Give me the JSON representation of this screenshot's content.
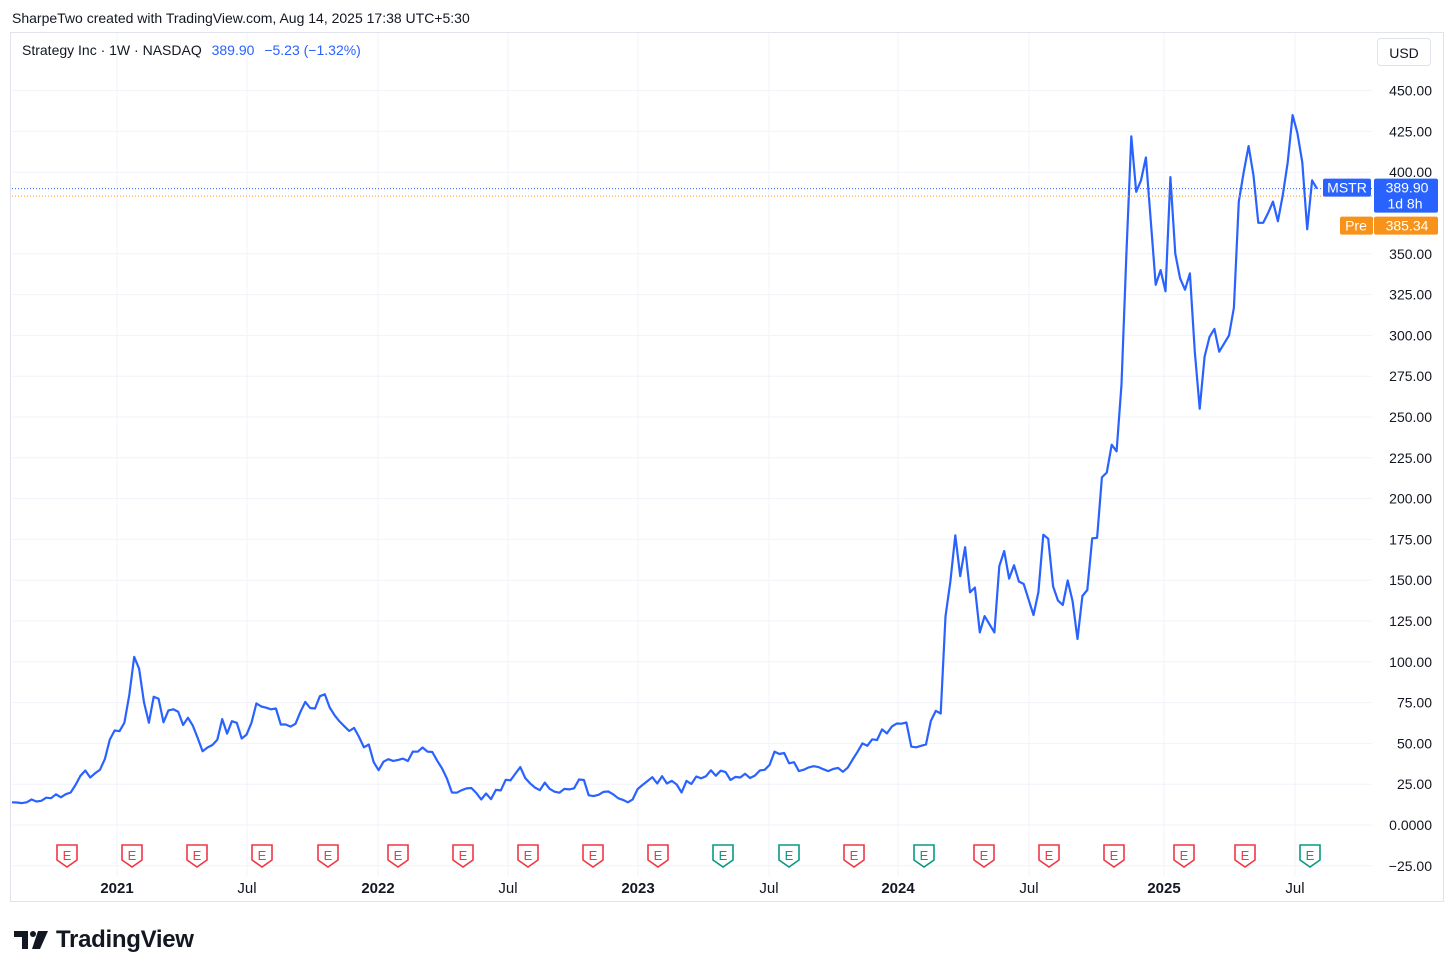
{
  "attribution": "SharpeTwo created with TradingView.com, Aug 14, 2025 17:38 UTC+5:30",
  "legend": {
    "symbol": "Strategy Inc · 1W · NASDAQ",
    "price": "389.90",
    "change": "−5.23 (−1.32%)"
  },
  "currency": "USD",
  "brand": {
    "name": "TradingView"
  },
  "price_tag": {
    "ticker": "MSTR",
    "price": "389.90",
    "countdown": "1d 8h",
    "color": "#2962ff"
  },
  "pre_tag": {
    "label": "Pre",
    "price": "385.34",
    "color": "#f7931a"
  },
  "chart_data": {
    "type": "line",
    "series": [
      {
        "values": [
          13.9,
          13.8,
          13.4,
          13.9,
          15.6,
          14.4,
          14.8,
          16.7,
          16.4,
          18.8,
          17.0,
          18.9,
          19.9,
          24.5,
          30.1,
          33.4,
          29.1,
          31.7,
          33.9,
          40.5,
          52.3,
          57.9,
          57.5,
          62.7,
          79.7,
          103.0,
          95.8,
          75.1,
          62.7,
          78.6,
          77.3,
          62.9,
          70.2,
          70.9,
          69.4,
          61.3,
          65.7,
          60.9,
          53.3,
          45.2,
          47.5,
          49.0,
          52.2,
          64.9,
          56.0,
          63.6,
          62.6,
          53.0,
          55.4,
          62.7,
          74.5,
          72.6,
          71.9,
          70.9,
          71.4,
          61.6,
          61.6,
          60.3,
          62.0,
          69.3,
          75.4,
          71.7,
          71.4,
          78.9,
          80.1,
          72.0,
          67.2,
          63.5,
          60.5,
          57.6,
          59.5,
          54.0,
          47.6,
          49.3,
          38.5,
          33.6,
          38.8,
          40.3,
          39.3,
          39.9,
          40.7,
          39.2,
          45.0,
          44.9,
          47.5,
          45.0,
          44.7,
          39.4,
          34.6,
          28.4,
          19.9,
          19.8,
          21.3,
          22.4,
          22.7,
          19.6,
          15.6,
          19.3,
          15.8,
          21.5,
          21.2,
          27.7,
          27.4,
          31.5,
          35.5,
          28.8,
          25.5,
          22.9,
          21.3,
          26.0,
          22.2,
          20.4,
          19.8,
          22.1,
          21.8,
          22.5,
          27.9,
          27.6,
          18.2,
          17.7,
          18.5,
          20.3,
          20.5,
          18.8,
          16.4,
          15.4,
          13.9,
          15.7,
          22.0,
          24.5,
          26.9,
          29.3,
          25.4,
          29.9,
          25.4,
          27.0,
          24.8,
          19.9,
          27.0,
          25.1,
          29.7,
          28.6,
          29.9,
          33.5,
          30.2,
          33.3,
          32.4,
          27.6,
          29.5,
          29.1,
          31.4,
          28.8,
          30.3,
          33.4,
          33.8,
          36.8,
          45.0,
          43.5,
          44.1,
          37.8,
          38.5,
          33.0,
          33.9,
          35.3,
          36.0,
          35.5,
          34.2,
          33.0,
          34.3,
          35.0,
          32.6,
          35.2,
          40.2,
          44.9,
          50.0,
          48.5,
          52.5,
          52.1,
          58.6,
          56.1,
          60.3,
          62.2,
          62.1,
          62.8,
          48.0,
          47.6,
          48.5,
          49.4,
          63.9,
          69.9,
          68.3,
          127.8,
          149.3,
          177.5,
          152.5,
          170.2,
          142.6,
          145.5,
          118.0,
          128.0,
          123.0,
          118.0,
          158.6,
          167.9,
          151.0,
          159.2,
          149.2,
          147.7,
          138.1,
          128.6,
          142.7,
          177.9,
          175.4,
          146.2,
          137.5,
          134.8,
          149.8,
          137.1,
          114.0,
          140.3,
          144.0,
          175.7,
          176.0,
          213.0,
          216.0,
          233.0,
          229.0,
          270.0,
          350.0,
          422.0,
          388.0,
          395.0,
          409.0,
          370.0,
          331.0,
          340.0,
          327.0,
          397.0,
          350.0,
          335.0,
          328.0,
          338.0,
          290.0,
          255.0,
          287.0,
          299.0,
          304.0,
          290.0,
          295.0,
          300.0,
          317.0,
          382.0,
          400.0,
          416.0,
          398.0,
          369.0,
          369.0,
          375.0,
          382.0,
          370.0,
          386.0,
          406.0,
          435.0,
          424.0,
          406.0,
          365.0,
          395.0,
          389.9
        ]
      }
    ],
    "x_labels": [
      "2021",
      "Jul",
      "2022",
      "Jul",
      "2023",
      "Jul",
      "2024",
      "Jul",
      "2025",
      "Jul"
    ],
    "y_ticks": [
      "450.00",
      "425.00",
      "400.00",
      "350.00",
      "325.00",
      "300.00",
      "275.00",
      "250.00",
      "225.00",
      "200.00",
      "175.00",
      "150.00",
      "125.00",
      "100.00",
      "75.00",
      "50.00",
      "25.00",
      "0.0000",
      "−25.00"
    ],
    "ylim": [
      -25,
      450
    ],
    "earnings_markers": [
      {
        "label": "E",
        "color": "#f23645"
      },
      {
        "label": "E",
        "color": "#f23645"
      },
      {
        "label": "E",
        "color": "#f23645"
      },
      {
        "label": "E",
        "color": "#f23645"
      },
      {
        "label": "E",
        "color": "#f23645"
      },
      {
        "label": "E",
        "color": "#f23645"
      },
      {
        "label": "E",
        "color": "#f23645"
      },
      {
        "label": "E",
        "color": "#f23645"
      },
      {
        "label": "E",
        "color": "#f23645"
      },
      {
        "label": "E",
        "color": "#f23645"
      },
      {
        "label": "E",
        "color": "#089981"
      },
      {
        "label": "E",
        "color": "#089981"
      },
      {
        "label": "E",
        "color": "#f23645"
      },
      {
        "label": "E",
        "color": "#089981"
      },
      {
        "label": "E",
        "color": "#f23645"
      },
      {
        "label": "E",
        "color": "#f23645"
      },
      {
        "label": "E",
        "color": "#f23645"
      },
      {
        "label": "E",
        "color": "#f23645"
      },
      {
        "label": "E",
        "color": "#f23645"
      },
      {
        "label": "E",
        "color": "#089981"
      }
    ],
    "line_color": "#2962ff",
    "grid": true
  }
}
